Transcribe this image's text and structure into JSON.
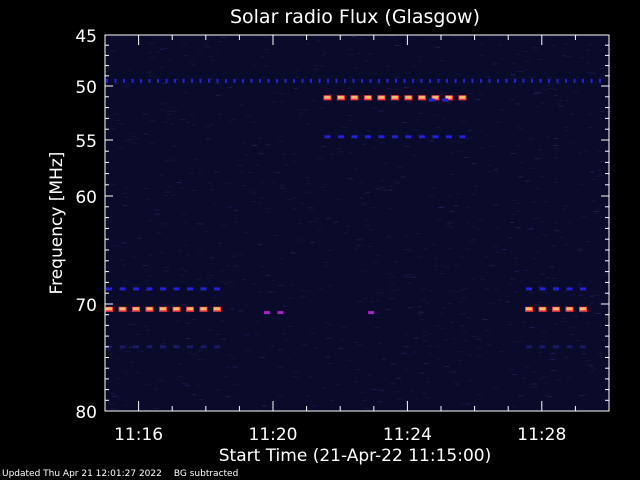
{
  "chart_data": {
    "type": "heatmap",
    "title": "Solar radio Flux (Glasgow)",
    "xlabel": "Start Time (21-Apr-22 11:15:00)",
    "ylabel": "Frequency [MHz]",
    "y_ticks": [
      45,
      50,
      55,
      60,
      70,
      80
    ],
    "x_ticks": [
      "11:16",
      "11:20",
      "11:24",
      "11:28"
    ],
    "x_tick_minutes": [
      1,
      5,
      9,
      13
    ],
    "xlim_minutes": [
      0,
      15
    ],
    "colors": {
      "background": "#0a0a2a",
      "faint": "#1a1a66",
      "medium": "#2222dd",
      "strong": "#ff3344",
      "peak": "#ffbb66",
      "mid_purple": "#aa22cc"
    },
    "emission_features": [
      {
        "freq": 49.5,
        "t_start": 0.0,
        "t_end": 15.0,
        "level": "medium",
        "style": "ticks"
      },
      {
        "freq": 51.0,
        "t_start": 6.5,
        "t_end": 11.0,
        "level": "peak",
        "style": "dashes"
      },
      {
        "freq": 51.3,
        "t_start": 9.6,
        "t_end": 10.3,
        "level": "medium",
        "style": "dashes"
      },
      {
        "freq": 54.7,
        "t_start": 6.5,
        "t_end": 11.0,
        "level": "medium",
        "style": "dashes"
      },
      {
        "freq": 68.6,
        "t_start": 0.0,
        "t_end": 3.5,
        "level": "medium",
        "style": "dashes"
      },
      {
        "freq": 68.6,
        "t_start": 12.5,
        "t_end": 14.5,
        "level": "medium",
        "style": "dashes"
      },
      {
        "freq": 70.4,
        "t_start": 0.0,
        "t_end": 3.5,
        "level": "peak",
        "style": "dashes"
      },
      {
        "freq": 70.4,
        "t_start": 12.5,
        "t_end": 14.5,
        "level": "peak",
        "style": "dashes"
      },
      {
        "freq": 70.8,
        "t_start": 4.7,
        "t_end": 5.5,
        "level": "mid_purple",
        "style": "dashes"
      },
      {
        "freq": 70.8,
        "t_start": 7.8,
        "t_end": 8.2,
        "level": "mid_purple",
        "style": "dashes"
      },
      {
        "freq": 74.0,
        "t_start": 0.0,
        "t_end": 3.5,
        "level": "faint",
        "style": "dashes"
      },
      {
        "freq": 74.0,
        "t_start": 12.5,
        "t_end": 14.5,
        "level": "faint",
        "style": "dashes"
      }
    ]
  },
  "footer": {
    "updated": "Updated Thu Apr 21 12:01:27 2022",
    "note": "BG subtracted"
  }
}
